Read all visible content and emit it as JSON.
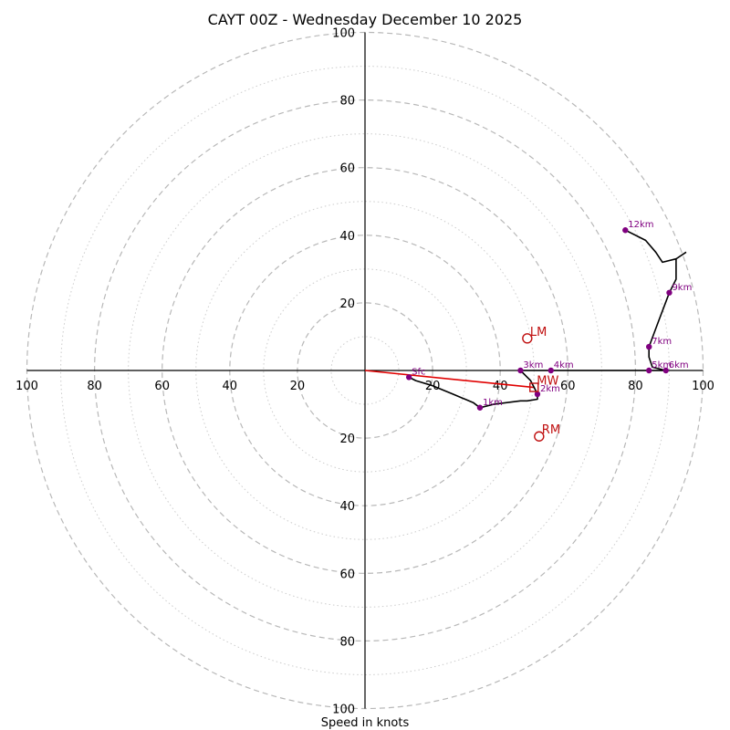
{
  "chart_data": {
    "type": "hodograph",
    "title": "CAYT 00Z - Wednesday December 10 2025",
    "xlabel": "Speed in knots",
    "rings_major": [
      20,
      40,
      60,
      80,
      100
    ],
    "rings_minor": [
      10,
      30,
      50,
      70,
      90
    ],
    "axis_tick_labels": [
      "20",
      "40",
      "60",
      "80",
      "100"
    ],
    "xlim": [
      -100,
      100
    ],
    "ylim": [
      -100,
      100
    ],
    "profile": [
      [
        13,
        -2
      ],
      [
        15,
        -3
      ],
      [
        20,
        -4.5
      ],
      [
        26,
        -7
      ],
      [
        32,
        -9.5
      ],
      [
        34,
        -11
      ],
      [
        38,
        -10
      ],
      [
        42,
        -9.5
      ],
      [
        46,
        -9
      ],
      [
        48,
        -9
      ],
      [
        51,
        -8.5
      ],
      [
        51,
        -7
      ],
      [
        50,
        -5
      ],
      [
        49,
        -3
      ],
      [
        48,
        -2
      ],
      [
        46,
        0
      ],
      [
        50,
        0
      ],
      [
        53,
        0
      ],
      [
        60,
        0
      ],
      [
        70,
        0
      ],
      [
        80,
        0
      ],
      [
        85,
        0
      ],
      [
        89,
        0
      ],
      [
        85,
        1
      ],
      [
        84,
        4
      ],
      [
        84,
        7
      ],
      [
        87,
        15
      ],
      [
        90,
        23
      ],
      [
        92,
        27
      ],
      [
        92,
        33
      ],
      [
        88,
        32
      ],
      [
        86,
        35
      ],
      [
        83,
        38.5
      ],
      [
        77,
        41.5
      ]
    ],
    "barb": {
      "base": [
        92,
        33
      ],
      "tip": [
        95,
        35
      ]
    },
    "height_points": [
      {
        "label": "Sfc",
        "u": 13,
        "v": -2
      },
      {
        "label": "1km",
        "u": 34,
        "v": -11
      },
      {
        "label": "2km",
        "u": 51,
        "v": -7
      },
      {
        "label": "3km",
        "u": 46,
        "v": 0
      },
      {
        "label": "4km",
        "u": 55,
        "v": 0
      },
      {
        "label": "5km",
        "u": 84,
        "v": 0
      },
      {
        "label": "6km",
        "u": 89,
        "v": 0
      },
      {
        "label": "7km",
        "u": 84,
        "v": 7
      },
      {
        "label": "9km",
        "u": 90,
        "v": 23
      },
      {
        "label": "12km",
        "u": 77,
        "v": 41.5
      }
    ],
    "storm_motions": [
      {
        "label": "LM",
        "u": 48,
        "v": 9.5,
        "marker": "circle"
      },
      {
        "label": "MW",
        "u": 50,
        "v": -5,
        "marker": "square"
      },
      {
        "label": "RM",
        "u": 51.5,
        "v": -19.5,
        "marker": "circle"
      }
    ],
    "shear_vector": {
      "from": [
        0,
        0
      ],
      "to": [
        50,
        -5
      ]
    }
  }
}
